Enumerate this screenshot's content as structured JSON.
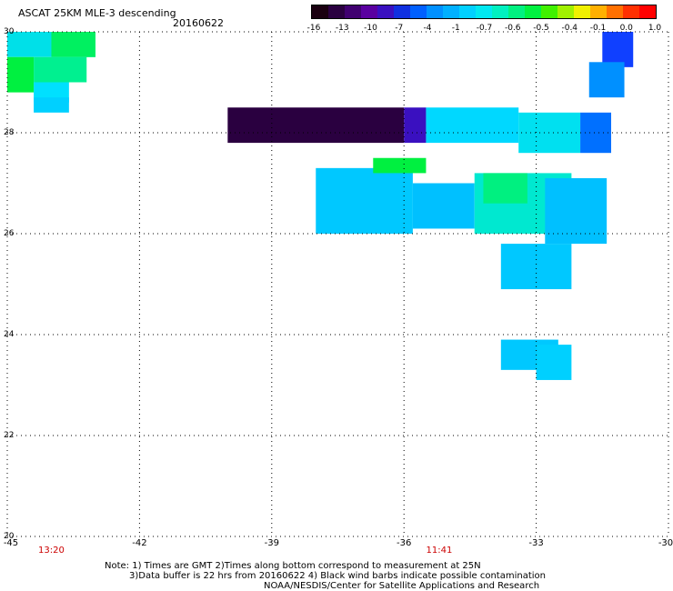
{
  "header": {
    "title": "ASCAT 25KM MLE-3 descending",
    "date": "20160622"
  },
  "colorbar": {
    "colors": [
      "#1a0010",
      "#2a0040",
      "#400070",
      "#5a00a0",
      "#3a10c0",
      "#1030e0",
      "#0060ff",
      "#0090ff",
      "#00b0ff",
      "#00d0ff",
      "#00e8f0",
      "#00f0c0",
      "#00f080",
      "#00f040",
      "#40f000",
      "#a0f000",
      "#f0f000",
      "#ffb000",
      "#ff7000",
      "#ff3000",
      "#ff0000"
    ],
    "labels": [
      "-16",
      "-13",
      "-10",
      "-7",
      "-4",
      "-1",
      "-0.7",
      "-0.6",
      "-0.5",
      "-0.4",
      "-0.1",
      "0.0",
      "1.0"
    ]
  },
  "axes": {
    "y_ticks": [
      "30",
      "28",
      "26",
      "24",
      "22",
      "20"
    ],
    "x_ticks": [
      "-45",
      "-42",
      "-39",
      "-36",
      "-33",
      "-30"
    ],
    "times": [
      {
        "lon": -44.0,
        "label": "13:20"
      },
      {
        "lon": -35.2,
        "label": "11:41"
      }
    ]
  },
  "notes": {
    "line1": "Note: 1) Times are GMT 2)Times along bottom correspond to measurement at 25N",
    "line2": "3)Data buffer is 22 hrs from 20160622 4) Black wind barbs indicate possible contamination",
    "line3": "NOAA/NESDIS/Center for Satellite Applications and Research"
  },
  "swaths": [
    {
      "lon0": -45.0,
      "lon1": -43.0,
      "lat0": 29.5,
      "lat1": 30.0,
      "color": "#00e0e8"
    },
    {
      "lon0": -44.0,
      "lon1": -43.0,
      "lat0": 29.5,
      "lat1": 30.0,
      "color": "#00f060"
    },
    {
      "lon0": -45.0,
      "lon1": -44.4,
      "lat0": 28.8,
      "lat1": 29.5,
      "color": "#00f040"
    },
    {
      "lon0": -44.4,
      "lon1": -43.2,
      "lat0": 29.0,
      "lat1": 29.5,
      "color": "#00f090"
    },
    {
      "lon0": -44.4,
      "lon1": -43.6,
      "lat0": 28.6,
      "lat1": 29.0,
      "color": "#00e0ff"
    },
    {
      "lon0": -44.4,
      "lon1": -43.6,
      "lat0": 28.4,
      "lat1": 28.7,
      "color": "#00d0ff"
    },
    {
      "lon0": -40.0,
      "lon1": -36.0,
      "lat0": 27.8,
      "lat1": 28.5,
      "color": "#2a0040"
    },
    {
      "lon0": -36.0,
      "lon1": -35.5,
      "lat0": 27.8,
      "lat1": 28.5,
      "color": "#3a10c0"
    },
    {
      "lon0": -35.5,
      "lon1": -33.4,
      "lat0": 27.8,
      "lat1": 28.5,
      "color": "#00d8ff"
    },
    {
      "lon0": -33.4,
      "lon1": -32.0,
      "lat0": 27.6,
      "lat1": 28.4,
      "color": "#00e0f0"
    },
    {
      "lon0": -32.0,
      "lon1": -31.3,
      "lat0": 27.6,
      "lat1": 28.4,
      "color": "#0070ff"
    },
    {
      "lon0": -38.0,
      "lon1": -35.8,
      "lat0": 26.0,
      "lat1": 27.3,
      "color": "#00c8ff"
    },
    {
      "lon0": -35.8,
      "lon1": -34.4,
      "lat0": 26.1,
      "lat1": 27.0,
      "color": "#00c0ff"
    },
    {
      "lon0": -34.4,
      "lon1": -32.2,
      "lat0": 26.0,
      "lat1": 27.2,
      "color": "#00e8d0"
    },
    {
      "lon0": -34.2,
      "lon1": -33.2,
      "lat0": 26.6,
      "lat1": 27.2,
      "color": "#00f080"
    },
    {
      "lon0": -32.8,
      "lon1": -31.4,
      "lat0": 25.8,
      "lat1": 27.1,
      "color": "#00c0ff"
    },
    {
      "lon0": -33.8,
      "lon1": -32.2,
      "lat0": 24.9,
      "lat1": 25.8,
      "color": "#00c8ff"
    },
    {
      "lon0": -36.7,
      "lon1": -35.5,
      "lat0": 27.2,
      "lat1": 27.5,
      "color": "#00f040"
    },
    {
      "lon0": -33.8,
      "lon1": -32.5,
      "lat0": 23.3,
      "lat1": 23.9,
      "color": "#00c8ff"
    },
    {
      "lon0": -33.0,
      "lon1": -32.2,
      "lat0": 23.1,
      "lat1": 23.8,
      "color": "#00d0ff"
    },
    {
      "lon0": -31.5,
      "lon1": -30.8,
      "lat0": 29.3,
      "lat1": 30.0,
      "color": "#1040ff"
    },
    {
      "lon0": -31.8,
      "lon1": -31.0,
      "lat0": 28.7,
      "lat1": 29.4,
      "color": "#0090ff"
    }
  ]
}
